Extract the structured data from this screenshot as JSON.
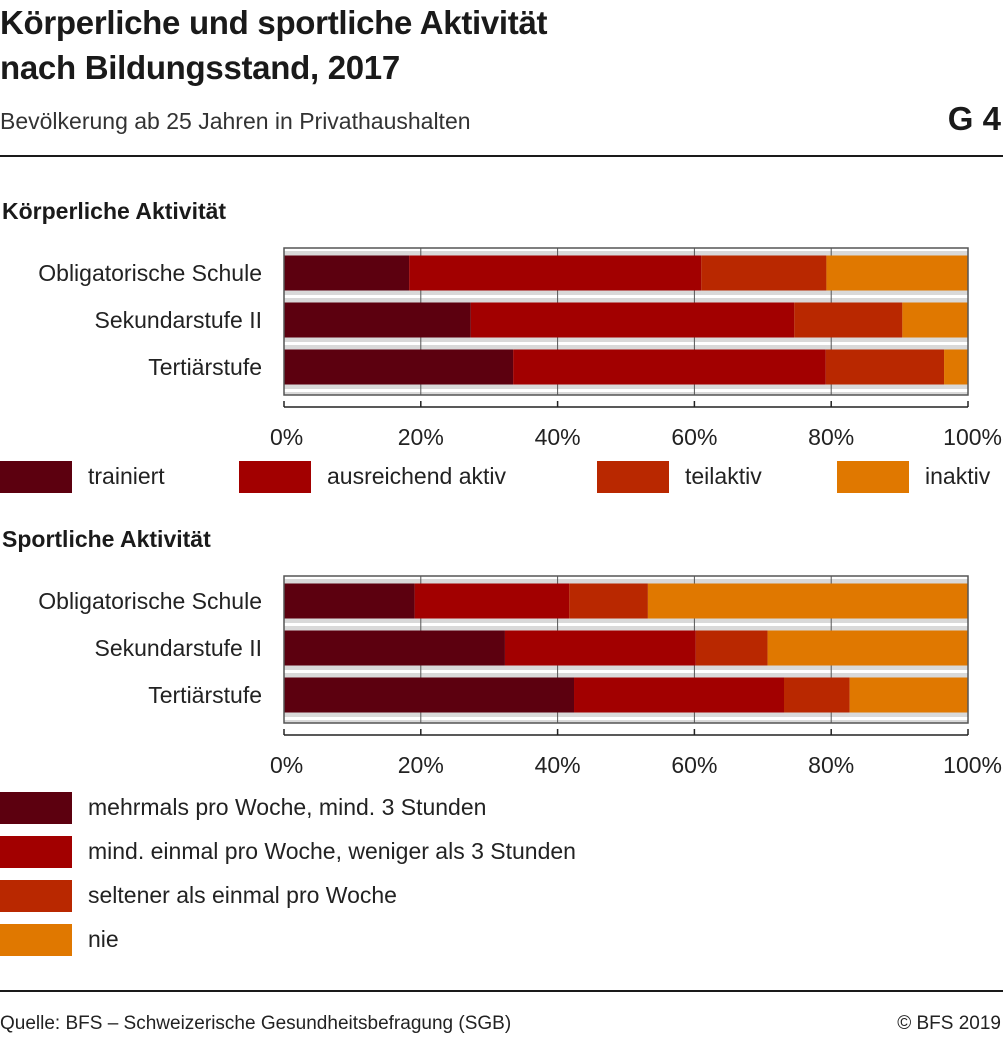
{
  "header": {
    "title_line1": "Körperliche und sportliche Aktivität",
    "title_line2": "nach Bildungsstand, 2017",
    "subtitle": "Bevölkerung ab 25 Jahren in Privathaushalten",
    "figure_number": "G 4"
  },
  "footer": {
    "source": "Quelle: BFS – Schweizerische Gesundheitsbefragung (SGB)",
    "copyright": "© BFS 2019"
  },
  "colors": [
    "#5c000f",
    "#a20000",
    "#b92800",
    "#e07800"
  ],
  "chart_data": [
    {
      "type": "bar",
      "orientation": "horizontal",
      "stacked": true,
      "title": "Körperliche Aktivität",
      "categories": [
        "Obligatorische Schule",
        "Sekundarstufe II",
        "Tertiärstufe"
      ],
      "series": [
        {
          "name": "trainiert",
          "values": [
            18.3,
            27.3,
            33.5
          ]
        },
        {
          "name": "ausreichend aktiv",
          "values": [
            42.7,
            47.3,
            45.7
          ]
        },
        {
          "name": "teilaktiv",
          "values": [
            18.3,
            15.8,
            17.3
          ]
        },
        {
          "name": "inaktiv",
          "values": [
            20.7,
            9.6,
            3.5
          ]
        }
      ],
      "xlim": [
        0,
        100
      ],
      "xticks": [
        "0%",
        "20%",
        "40%",
        "60%",
        "80%",
        "100%"
      ],
      "grid": true,
      "legend": "bottom"
    },
    {
      "type": "bar",
      "orientation": "horizontal",
      "stacked": true,
      "title": "Sportliche Aktivität",
      "categories": [
        "Obligatorische Schule",
        "Sekundarstufe II",
        "Tertiärstufe"
      ],
      "series": [
        {
          "name": "mehrmals pro Woche, mind. 3 Stunden",
          "values": [
            19.1,
            32.3,
            42.4
          ]
        },
        {
          "name": "mind. einmal pro Woche, weniger als 3 Stunden",
          "values": [
            22.6,
            27.9,
            30.7
          ]
        },
        {
          "name": "seltener als einmal pro Woche",
          "values": [
            11.5,
            10.5,
            9.6
          ]
        },
        {
          "name": "nie",
          "values": [
            46.8,
            29.3,
            17.3
          ]
        }
      ],
      "xlim": [
        0,
        100
      ],
      "xticks": [
        "0%",
        "20%",
        "40%",
        "60%",
        "80%",
        "100%"
      ],
      "grid": true,
      "legend": "bottom"
    }
  ]
}
